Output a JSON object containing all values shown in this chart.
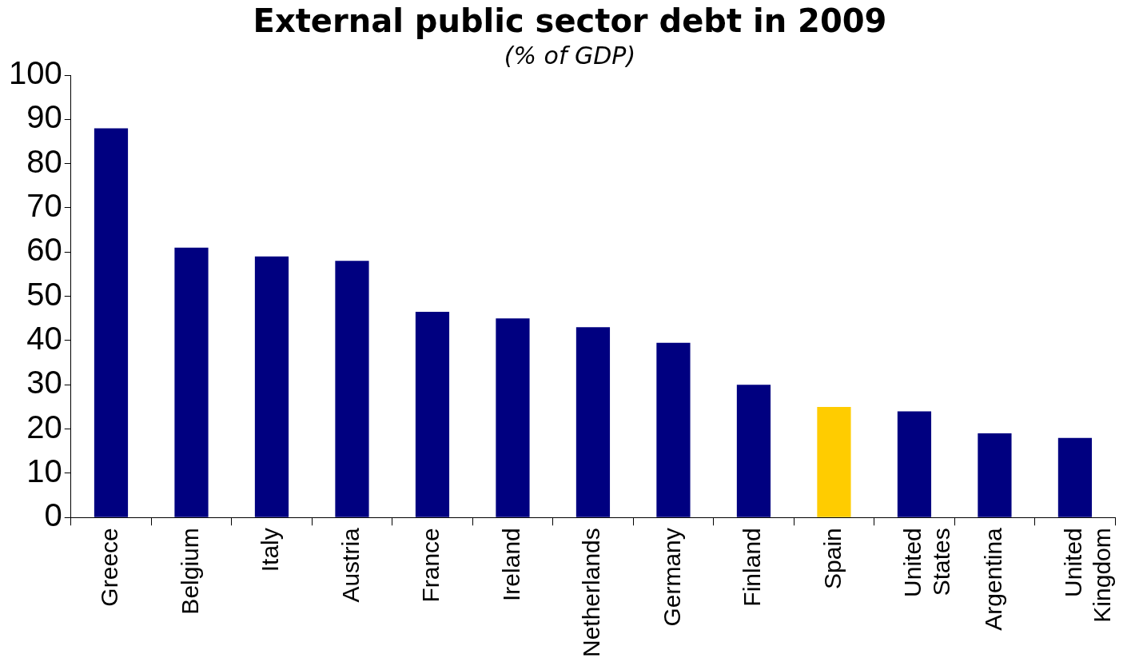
{
  "chart_data": {
    "type": "bar",
    "title": "External public sector debt in 2009",
    "subtitle": "(% of GDP)",
    "categories": [
      "Greece",
      "Belgium",
      "Italy",
      "Austria",
      "France",
      "Ireland",
      "Netherlands",
      "Germany",
      "Finland",
      "Spain",
      "United States",
      "Argentina",
      "United Kingdom"
    ],
    "values": [
      88,
      61,
      59,
      58,
      46.5,
      45,
      43,
      39.5,
      30,
      25,
      24,
      19,
      18
    ],
    "colors": [
      "#000080",
      "#000080",
      "#000080",
      "#000080",
      "#000080",
      "#000080",
      "#000080",
      "#000080",
      "#000080",
      "#ffcc00",
      "#000080",
      "#000080",
      "#000080"
    ],
    "ylim": [
      0,
      100
    ],
    "yticks": [
      0,
      10,
      20,
      30,
      40,
      50,
      60,
      70,
      80,
      90,
      100
    ],
    "grid": false,
    "legend": false
  }
}
